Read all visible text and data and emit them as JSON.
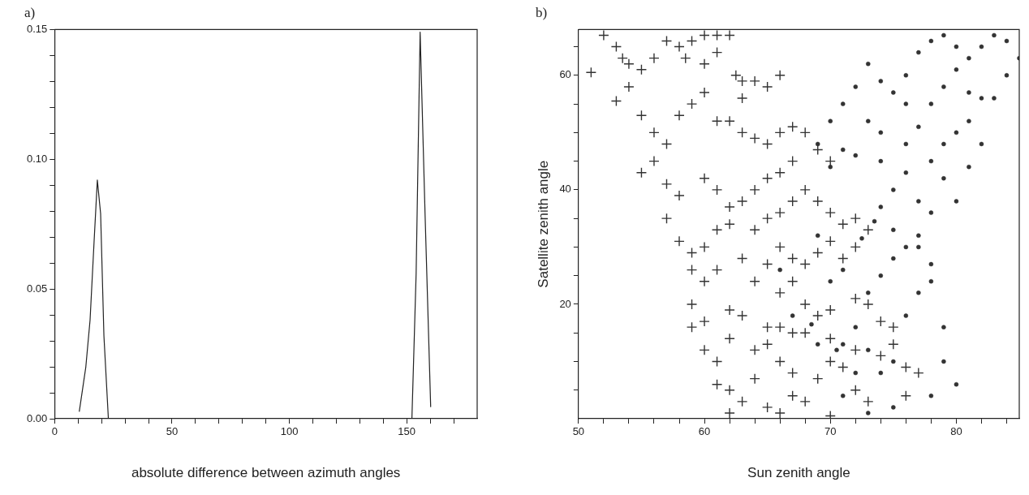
{
  "chart_data": [
    {
      "type": "line",
      "title": "a)",
      "xlabel": "absolute difference between azimuth angles",
      "color": "#222222",
      "marker": "none",
      "line_style": "solid",
      "grid": false,
      "legend": false,
      "x": [
        10.5,
        13.3,
        15.1,
        16.8,
        18.2,
        19.6,
        21,
        22.9,
        152.2,
        154,
        155.7,
        157.8,
        160.2
      ],
      "values": [
        0.0027,
        0.02,
        0.038,
        0.068,
        0.092,
        0.079,
        0.032,
        0,
        0,
        0.056,
        0.149,
        0.079,
        0.0045
      ],
      "xlim": [
        0,
        180
      ],
      "xticks": [
        0,
        {
          "value": 10,
          "label": null
        },
        {
          "value": 20,
          "label": null
        },
        {
          "value": 30,
          "label": null
        },
        {
          "value": 40,
          "label": null
        },
        50,
        {
          "value": 60,
          "label": null
        },
        {
          "value": 70,
          "label": null
        },
        {
          "value": 80,
          "label": null
        },
        {
          "value": 90,
          "label": null
        },
        100,
        {
          "value": 110,
          "label": null
        },
        {
          "value": 120,
          "label": null
        },
        {
          "value": 130,
          "label": null
        },
        {
          "value": 140,
          "label": null
        },
        150,
        {
          "value": 160,
          "label": null
        },
        {
          "value": 170,
          "label": null
        }
      ],
      "ylim": [
        0,
        0.15
      ],
      "yticks": [
        {
          "value": 0,
          "label": "0.00"
        },
        {
          "value": 0.01,
          "label": null
        },
        {
          "value": 0.02,
          "label": null
        },
        {
          "value": 0.03,
          "label": null
        },
        {
          "value": 0.04,
          "label": null
        },
        0.05,
        {
          "value": 0.06,
          "label": null
        },
        {
          "value": 0.07,
          "label": null
        },
        {
          "value": 0.08,
          "label": null
        },
        {
          "value": 0.09,
          "label": null
        },
        {
          "value": 0.1,
          "label": "0.10"
        },
        {
          "value": 0.11,
          "label": null
        },
        {
          "value": 0.12,
          "label": null
        },
        {
          "value": 0.13,
          "label": null
        },
        {
          "value": 0.14,
          "label": null
        },
        0.15
      ]
    },
    {
      "type": "scatter",
      "title": "b)",
      "xlabel": "Sun zenith angle",
      "ylabel": "Satellite zenith angle",
      "grid": false,
      "legend": false,
      "series": [
        {
          "color": "#333333",
          "marker": "cross",
          "x": [
            51,
            52,
            53,
            53.5,
            54,
            54,
            53,
            55,
            56,
            57,
            58,
            58.5,
            59,
            60,
            61,
            62,
            61,
            60,
            62.5,
            63,
            64,
            65,
            66,
            63,
            60,
            59,
            58,
            61,
            62,
            63,
            64,
            65,
            66,
            67,
            68,
            69,
            70,
            67,
            66,
            65,
            64,
            63,
            62,
            61,
            60,
            57,
            56,
            55,
            56,
            55,
            57,
            58,
            57,
            58,
            59,
            60,
            61,
            62,
            64,
            65,
            66,
            67,
            68,
            69,
            70,
            71,
            72,
            73,
            72,
            71,
            70,
            69,
            68,
            67,
            66,
            65,
            63,
            61,
            60,
            59,
            64,
            66,
            67,
            68,
            69,
            70,
            72,
            73,
            74,
            75,
            75,
            76,
            77,
            74,
            72,
            71,
            70,
            69,
            67,
            66,
            65,
            64,
            62,
            61,
            60,
            59,
            59,
            60,
            62,
            63,
            65,
            66,
            67,
            68,
            70,
            61,
            62,
            63,
            65,
            66,
            67,
            68,
            70,
            72,
            73,
            76,
            64,
            62
          ],
          "values": [
            60.5,
            67,
            65,
            63,
            62,
            58,
            55.5,
            61,
            63,
            66,
            65,
            63,
            66,
            67,
            67,
            67,
            64,
            62,
            60,
            59,
            59,
            58,
            60,
            56,
            57,
            55,
            53,
            52,
            52,
            50,
            49,
            48,
            50,
            51,
            50,
            47,
            45,
            45,
            43,
            42,
            40,
            38,
            37,
            40,
            42,
            48,
            50,
            53,
            45,
            43,
            41,
            39,
            35,
            31,
            29,
            30,
            33,
            34,
            33,
            35,
            36,
            38,
            40,
            38,
            36,
            34,
            35,
            33,
            30,
            28,
            31,
            29,
            27,
            28,
            30,
            27,
            28,
            26,
            24,
            26,
            24,
            22,
            24,
            20,
            18,
            19,
            21,
            20,
            17,
            16,
            13,
            9,
            8,
            11,
            12,
            9,
            10,
            7,
            8,
            10,
            13,
            12,
            14,
            10,
            12,
            16,
            20,
            17,
            19,
            18,
            16,
            16,
            15,
            15,
            14,
            6,
            5,
            3,
            2,
            1,
            4,
            3,
            0.5,
            5,
            3,
            4,
            7,
            1
          ]
        },
        {
          "color": "#333333",
          "marker": "circle",
          "x": [
            68.5,
            69,
            70.5,
            71,
            72,
            73,
            74,
            75,
            76,
            77,
            78,
            79,
            78,
            77,
            76,
            75,
            74,
            73,
            72,
            71,
            73,
            75,
            78,
            80,
            79,
            70,
            71,
            72.5,
            73.5,
            74,
            75,
            76,
            77,
            78,
            79,
            80,
            81,
            82,
            83,
            84,
            85,
            84,
            83,
            82,
            81,
            80,
            79,
            78,
            77,
            76,
            75,
            74,
            73,
            72,
            71,
            70,
            69,
            70,
            72,
            74,
            76,
            77,
            78,
            79,
            80,
            81,
            82,
            79,
            80,
            81,
            78,
            76,
            74,
            73,
            71,
            75,
            77,
            67,
            66,
            69
          ],
          "values": [
            16.5,
            13,
            12,
            13,
            16,
            22,
            25,
            28,
            30,
            32,
            27,
            16,
            24,
            22,
            18,
            10,
            8,
            12,
            8,
            4,
            1,
            2,
            4,
            6,
            10,
            24,
            26,
            31.5,
            34.5,
            37,
            40,
            43,
            38,
            45,
            48,
            50,
            52,
            48,
            56,
            60,
            63,
            66,
            67,
            65,
            63,
            61,
            58,
            55,
            51,
            55,
            57,
            59,
            62,
            58,
            55,
            52,
            48,
            44,
            46,
            50,
            60,
            64,
            66,
            67,
            65,
            57,
            56,
            42,
            38,
            44,
            36,
            48,
            45,
            52,
            47,
            33,
            30,
            18,
            26,
            32
          ]
        }
      ],
      "xlim": [
        50,
        85
      ],
      "xticks": [
        50,
        {
          "value": 52,
          "label": null
        },
        {
          "value": 54,
          "label": null
        },
        {
          "value": 56,
          "label": null
        },
        {
          "value": 58,
          "label": null
        },
        60,
        {
          "value": 62,
          "label": null
        },
        {
          "value": 64,
          "label": null
        },
        {
          "value": 66,
          "label": null
        },
        {
          "value": 68,
          "label": null
        },
        70,
        {
          "value": 72,
          "label": null
        },
        {
          "value": 74,
          "label": null
        },
        {
          "value": 76,
          "label": null
        },
        {
          "value": 78,
          "label": null
        },
        80,
        {
          "value": 82,
          "label": null
        },
        {
          "value": 84,
          "label": null
        }
      ],
      "ylim": [
        0,
        68
      ],
      "yticks": [
        {
          "value": 5,
          "label": null
        },
        {
          "value": 10,
          "label": null
        },
        {
          "value": 15,
          "label": null
        },
        20,
        {
          "value": 25,
          "label": null
        },
        {
          "value": 30,
          "label": null
        },
        {
          "value": 35,
          "label": null
        },
        40,
        {
          "value": 45,
          "label": null
        },
        {
          "value": 50,
          "label": null
        },
        {
          "value": 55,
          "label": null
        },
        60,
        {
          "value": 65,
          "label": null
        }
      ]
    }
  ]
}
